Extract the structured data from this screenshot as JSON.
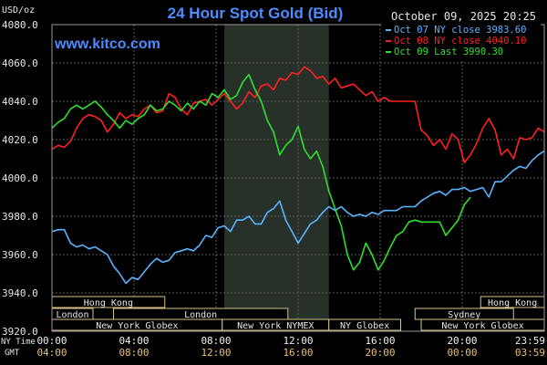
{
  "chart_data": {
    "type": "line",
    "title": "24 Hour Spot Gold (Bid)",
    "watermark": "www.kitco.com",
    "date_stamp": "October 09, 2025 20:25",
    "ylabel": "USD/oz",
    "ylim": [
      3920,
      4080
    ],
    "yticks": [
      "4080.0",
      "4060.0",
      "4040.0",
      "4020.0",
      "4000.0",
      "3980.0",
      "3960.0",
      "3940.0",
      "3920.0"
    ],
    "ytick_values": [
      4080,
      4060,
      4040,
      4020,
      4000,
      3980,
      3960,
      3940,
      3920
    ],
    "x_axis_rows": [
      {
        "name": "NY Time",
        "ticks": [
          "00:00",
          "04:00",
          "08:00",
          "12:00",
          "16:00",
          "20:00",
          "23:59"
        ]
      },
      {
        "name": "GMT",
        "ticks": [
          "04:00",
          "08:00",
          "12:00",
          "16:00",
          "20:00",
          "00:00",
          "03:59"
        ]
      }
    ],
    "xtick_hours": [
      0,
      4,
      8,
      12,
      16,
      20,
      23.98
    ],
    "xlim_hours": [
      0,
      24
    ],
    "highlight_hours": [
      8.4,
      13.5
    ],
    "grid": true,
    "legend_position": "top-right",
    "sessions": [
      {
        "label": "Hong Kong",
        "start": 0,
        "end": 5.5,
        "row": 0
      },
      {
        "label": "Hong Kong",
        "start": 20.9,
        "end": 24,
        "row": 0
      },
      {
        "label": "London",
        "start": 0,
        "end": 2,
        "row": 1
      },
      {
        "label": "London",
        "start": 3,
        "end": 11.5,
        "row": 1
      },
      {
        "label": "Sydney",
        "start": 17.7,
        "end": 22.5,
        "row": 1
      },
      {
        "label": "New York Globex",
        "start": 0,
        "end": 8.3,
        "row": 2
      },
      {
        "label": "New York NYMEX",
        "start": 8.3,
        "end": 13.5,
        "row": 2
      },
      {
        "label": "NY Globex",
        "start": 13.5,
        "end": 17,
        "row": 2
      },
      {
        "label": "New York Globex",
        "start": 18,
        "end": 24,
        "row": 2
      }
    ],
    "series": [
      {
        "name": "Oct 07 NY close 3983.60",
        "color": "#5ab4ff",
        "x": [
          0,
          0.3,
          0.6,
          0.9,
          1.2,
          1.5,
          1.8,
          2.1,
          2.4,
          2.7,
          3.0,
          3.3,
          3.6,
          3.9,
          4.2,
          4.5,
          4.8,
          5.1,
          5.4,
          5.7,
          6.0,
          6.3,
          6.6,
          6.9,
          7.2,
          7.5,
          7.8,
          8.1,
          8.4,
          8.7,
          9.0,
          9.3,
          9.6,
          9.9,
          10.2,
          10.5,
          10.8,
          11.1,
          11.4,
          11.7,
          12.0,
          12.3,
          12.6,
          12.9,
          13.2,
          13.5,
          13.8,
          14.1,
          14.4,
          14.7,
          15.0,
          15.3,
          15.6,
          15.9,
          16.2,
          16.5,
          16.8,
          17.1,
          17.4,
          17.7,
          18.0,
          18.3,
          18.6,
          18.9,
          19.2,
          19.5,
          19.8,
          20.1,
          20.4,
          20.7,
          21.0,
          21.3,
          21.6,
          21.9,
          22.2,
          22.5,
          22.8,
          23.1,
          23.4,
          23.7,
          24.0
        ],
        "values": [
          3972,
          3973,
          3973,
          3966,
          3964,
          3965,
          3963,
          3964,
          3962,
          3960,
          3954,
          3950,
          3945,
          3948,
          3947,
          3951,
          3955,
          3958,
          3956,
          3957,
          3961,
          3962,
          3963,
          3962,
          3965,
          3970,
          3969,
          3974,
          3975,
          3972,
          3978,
          3978,
          3980,
          3976,
          3976,
          3982,
          3984,
          3988,
          3978,
          3972,
          3966,
          3971,
          3976,
          3978,
          3982,
          3985,
          3983,
          3985,
          3982,
          3980,
          3981,
          3980,
          3982,
          3981,
          3983,
          3983,
          3983,
          3985,
          3985,
          3985,
          3988,
          3990,
          3992,
          3993,
          3991,
          3994,
          3994,
          3995,
          3993,
          3994,
          3995,
          3990,
          3998,
          3998,
          4001,
          4004,
          4006,
          4005,
          4009,
          4012,
          4014
        ]
      },
      {
        "name": "Oct 08 NY close 4040.10",
        "color": "#ff2020",
        "x": [
          0,
          0.3,
          0.6,
          0.9,
          1.2,
          1.5,
          1.8,
          2.1,
          2.4,
          2.7,
          3.0,
          3.3,
          3.6,
          3.9,
          4.2,
          4.5,
          4.8,
          5.1,
          5.4,
          5.7,
          6.0,
          6.3,
          6.6,
          6.9,
          7.2,
          7.5,
          7.8,
          8.1,
          8.4,
          8.7,
          9.0,
          9.3,
          9.6,
          9.9,
          10.2,
          10.5,
          10.8,
          11.1,
          11.4,
          11.7,
          12.0,
          12.3,
          12.6,
          12.9,
          13.2,
          13.5,
          13.8,
          14.1,
          14.4,
          14.7,
          15.0,
          15.3,
          15.6,
          15.9,
          16.2,
          16.5,
          16.8,
          17.1,
          17.4,
          17.7,
          18.0,
          18.3,
          18.6,
          18.9,
          19.2,
          19.5,
          19.8,
          20.1,
          20.4,
          20.7,
          21.0,
          21.3,
          21.6,
          21.9,
          22.2,
          22.5,
          22.8,
          23.1,
          23.4,
          23.7,
          24.0
        ],
        "values": [
          4015,
          4017,
          4016,
          4019,
          4026,
          4031,
          4033,
          4032,
          4030,
          4024,
          4028,
          4034,
          4031,
          4033,
          4032,
          4036,
          4038,
          4034,
          4035,
          4044,
          4042,
          4036,
          4033,
          4039,
          4040,
          4041,
          4038,
          4041,
          4044,
          4040,
          4036,
          4039,
          4045,
          4042,
          4048,
          4049,
          4046,
          4052,
          4051,
          4055,
          4054,
          4058,
          4056,
          4052,
          4053,
          4049,
          4052,
          4047,
          4048,
          4049,
          4046,
          4043,
          4045,
          4040,
          4042,
          4040,
          4040,
          4040,
          4040,
          4040,
          4025,
          4022,
          4017,
          4020,
          4015,
          4023,
          4020,
          4008,
          4012,
          4018,
          4026,
          4031,
          4025,
          4012,
          4015,
          4010,
          4021,
          4020,
          4021,
          4026,
          4024
        ]
      },
      {
        "name": "Oct 09 Last 3990.30",
        "color": "#2ee02e",
        "x": [
          0,
          0.3,
          0.6,
          0.9,
          1.2,
          1.5,
          1.8,
          2.1,
          2.4,
          2.7,
          3.0,
          3.3,
          3.6,
          3.9,
          4.2,
          4.5,
          4.8,
          5.1,
          5.4,
          5.7,
          6.0,
          6.3,
          6.6,
          6.9,
          7.2,
          7.5,
          7.8,
          8.1,
          8.4,
          8.7,
          9.0,
          9.3,
          9.6,
          9.9,
          10.2,
          10.5,
          10.8,
          11.1,
          11.4,
          11.7,
          12.0,
          12.3,
          12.6,
          12.9,
          13.2,
          13.5,
          13.8,
          14.1,
          14.4,
          14.7,
          15.0,
          15.3,
          15.6,
          15.9,
          16.2,
          16.5,
          16.8,
          17.1,
          17.4,
          17.7,
          18.0,
          18.3,
          18.6,
          18.9,
          19.2,
          19.5,
          19.8,
          20.1,
          20.4
        ],
        "values": [
          4026,
          4029,
          4031,
          4036,
          4038,
          4036,
          4038,
          4040,
          4037,
          4033,
          4030,
          4026,
          4030,
          4028,
          4031,
          4033,
          4038,
          4035,
          4036,
          4040,
          4038,
          4035,
          4039,
          4036,
          4040,
          4038,
          4044,
          4042,
          4046,
          4041,
          4043,
          4050,
          4054,
          4046,
          4040,
          4030,
          4024,
          4012,
          4017,
          4020,
          4027,
          4015,
          4010,
          4014,
          4006,
          3993,
          3984,
          3975,
          3960,
          3952,
          3956,
          3966,
          3960,
          3952,
          3957,
          3964,
          3970,
          3972,
          3977,
          3978,
          3977,
          3977,
          3977,
          3977,
          3970,
          3974,
          3978,
          3986,
          3990
        ]
      }
    ]
  }
}
